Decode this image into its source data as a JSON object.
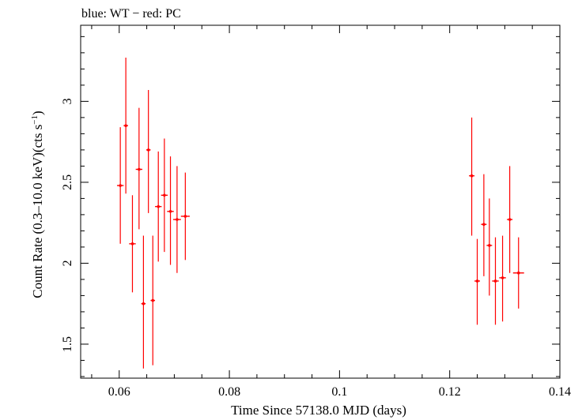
{
  "chart_data": {
    "type": "scatter",
    "title": "blue: WT − red: PC",
    "xlabel": "Time Since 57138.0 MJD (days)",
    "ylabel": "Count Rate (0.3–10.0 keV)(cts s",
    "ylabel_sup": "−1",
    "ylabel_end": ")",
    "xlim": [
      0.053,
      0.14
    ],
    "ylim": [
      1.29,
      3.47
    ],
    "xticks": [
      {
        "value": 0.06,
        "label": "0.06"
      },
      {
        "value": 0.08,
        "label": "0.08"
      },
      {
        "value": 0.1,
        "label": "0.1"
      },
      {
        "value": 0.12,
        "label": "0.12"
      },
      {
        "value": 0.14,
        "label": "0.14"
      }
    ],
    "yticks": [
      {
        "value": 1.5,
        "label": "1.5"
      },
      {
        "value": 2,
        "label": "2"
      },
      {
        "value": 2.5,
        "label": "2.5"
      },
      {
        "value": 3,
        "label": "3"
      }
    ],
    "x_minor_step": 0.005,
    "y_minor_step": 0.1,
    "grid": false,
    "series": [
      {
        "name": "PC",
        "color": "#ff0000",
        "points": [
          {
            "x": 0.0602,
            "y": 2.48,
            "xerr": 0.0006,
            "ylo": 2.12,
            "yhi": 2.84
          },
          {
            "x": 0.0612,
            "y": 2.85,
            "xerr": 0.0004,
            "ylo": 2.43,
            "yhi": 3.27
          },
          {
            "x": 0.0624,
            "y": 2.12,
            "xerr": 0.0006,
            "ylo": 1.82,
            "yhi": 2.42
          },
          {
            "x": 0.0636,
            "y": 2.58,
            "xerr": 0.0006,
            "ylo": 2.21,
            "yhi": 2.96
          },
          {
            "x": 0.0644,
            "y": 1.75,
            "xerr": 0.0004,
            "ylo": 1.35,
            "yhi": 2.17
          },
          {
            "x": 0.0653,
            "y": 2.7,
            "xerr": 0.0004,
            "ylo": 2.31,
            "yhi": 3.07
          },
          {
            "x": 0.0661,
            "y": 1.77,
            "xerr": 0.0004,
            "ylo": 1.37,
            "yhi": 2.17
          },
          {
            "x": 0.0671,
            "y": 2.35,
            "xerr": 0.0006,
            "ylo": 2.01,
            "yhi": 2.69
          },
          {
            "x": 0.0682,
            "y": 2.42,
            "xerr": 0.0006,
            "ylo": 2.07,
            "yhi": 2.77
          },
          {
            "x": 0.0693,
            "y": 2.32,
            "xerr": 0.0006,
            "ylo": 1.99,
            "yhi": 2.66
          },
          {
            "x": 0.0705,
            "y": 2.27,
            "xerr": 0.0007,
            "ylo": 1.94,
            "yhi": 2.6
          },
          {
            "x": 0.072,
            "y": 2.29,
            "xerr": 0.0008,
            "ylo": 2.02,
            "yhi": 2.56
          },
          {
            "x": 0.124,
            "y": 2.54,
            "xerr": 0.0005,
            "ylo": 2.17,
            "yhi": 2.9
          },
          {
            "x": 0.125,
            "y": 1.89,
            "xerr": 0.0005,
            "ylo": 1.62,
            "yhi": 2.15
          },
          {
            "x": 0.1262,
            "y": 2.24,
            "xerr": 0.0005,
            "ylo": 1.92,
            "yhi": 2.55
          },
          {
            "x": 0.1272,
            "y": 2.11,
            "xerr": 0.0005,
            "ylo": 1.8,
            "yhi": 2.4
          },
          {
            "x": 0.1283,
            "y": 1.89,
            "xerr": 0.0006,
            "ylo": 1.62,
            "yhi": 2.16
          },
          {
            "x": 0.1296,
            "y": 1.91,
            "xerr": 0.0006,
            "ylo": 1.64,
            "yhi": 2.17
          },
          {
            "x": 0.1309,
            "y": 2.27,
            "xerr": 0.0005,
            "ylo": 1.94,
            "yhi": 2.6
          },
          {
            "x": 0.1325,
            "y": 1.94,
            "xerr": 0.001,
            "ylo": 1.72,
            "yhi": 2.16
          }
        ]
      }
    ]
  }
}
